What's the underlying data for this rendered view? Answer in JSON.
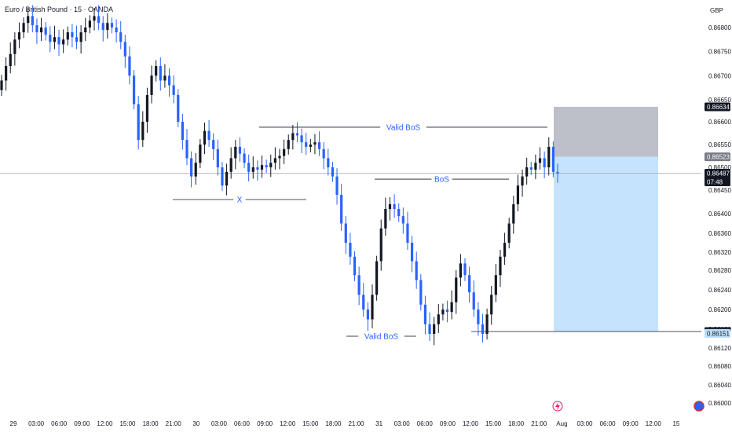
{
  "header": {
    "symbol_title": "Euro / British Pound · 15 · OANDA",
    "currency": "GBP"
  },
  "colors": {
    "up_candle": "#131722",
    "down_candle": "#2962ff",
    "annotation_text": "#2962ff",
    "annotation_line": "#131722",
    "stop_zone": "#b2b5be",
    "target_zone": "#bbdefb",
    "price_line": "#9598a1"
  },
  "chart_data": {
    "type": "candlestick",
    "title": "Euro / British Pound · 15 · OANDA",
    "ylim": [
      0.8597,
      0.869
    ],
    "y_ticks": [
      "0.86800",
      "0.86750",
      "0.86700",
      "0.86650",
      "0.86600",
      "0.86550",
      "0.86500",
      "0.86450",
      "0.86400",
      "0.86360",
      "0.86320",
      "0.86280",
      "0.86240",
      "0.86200",
      "0.86160",
      "0.86120",
      "0.86080",
      "0.86040",
      "0.86000"
    ],
    "x_ticks": [
      "29",
      "03:00",
      "06:00",
      "09:00",
      "12:00",
      "15:00",
      "18:00",
      "21:00",
      "30",
      "03:00",
      "06:00",
      "09:00",
      "12:00",
      "15:00",
      "18:00",
      "21:00",
      "31",
      "03:00",
      "06:00",
      "09:00",
      "12:00",
      "15:00",
      "18:00",
      "21:00",
      "Aug",
      "03:00",
      "06:00",
      "09:00",
      "12:00",
      "15"
    ],
    "price_labels": [
      {
        "value": 0.86634,
        "text": "0.86634",
        "style": "dark"
      },
      {
        "value": 0.86523,
        "text": "0.86523",
        "style": "grey"
      },
      {
        "value": 0.86487,
        "text": "0.86487",
        "style": "dark",
        "countdown": "07:48"
      },
      {
        "value": 0.86155,
        "text": "0.86155",
        "style": "dark"
      },
      {
        "value": 0.86151,
        "text": "0.86151",
        "style": "blue"
      }
    ],
    "annotations": [
      {
        "label": "Valid BoS",
        "level": 0.86588,
        "x0": 330,
        "x1": 697
      },
      {
        "label": "X",
        "level": 0.8643,
        "x0": 220,
        "x1": 390
      },
      {
        "label": "BoS",
        "level": 0.86474,
        "x0": 477,
        "x1": 648
      },
      {
        "label": "Valid BoS",
        "level": 0.86145,
        "x0": 441,
        "x1": 530
      }
    ],
    "support_line": {
      "level": 0.86155
    },
    "position": {
      "entry": 0.86487,
      "stop": 0.86634,
      "target": 0.86155
    },
    "current_price": 0.86487,
    "closes": [
      0.8669,
      0.8672,
      0.86745,
      0.86775,
      0.8679,
      0.8681,
      0.86825,
      0.86805,
      0.8679,
      0.868,
      0.86785,
      0.8677,
      0.8678,
      0.86765,
      0.86775,
      0.8679,
      0.8678,
      0.8677,
      0.8679,
      0.868,
      0.86815,
      0.86825,
      0.8681,
      0.86795,
      0.8681,
      0.868,
      0.8679,
      0.8677,
      0.8674,
      0.867,
      0.8664,
      0.8656,
      0.866,
      0.8666,
      0.867,
      0.8672,
      0.8669,
      0.867,
      0.8668,
      0.8666,
      0.866,
      0.8656,
      0.8652,
      0.8648,
      0.8651,
      0.8655,
      0.8658,
      0.8656,
      0.8654,
      0.865,
      0.8646,
      0.8649,
      0.8652,
      0.86545,
      0.8653,
      0.8651,
      0.8649,
      0.865,
      0.86495,
      0.86505,
      0.865,
      0.8651,
      0.8652,
      0.86525,
      0.8654,
      0.8656,
      0.86575,
      0.8657,
      0.86555,
      0.86545,
      0.8655,
      0.86555,
      0.8654,
      0.8652,
      0.865,
      0.8648,
      0.8644,
      0.8638,
      0.8634,
      0.8631,
      0.8627,
      0.8623,
      0.862,
      0.8618,
      0.8623,
      0.863,
      0.8637,
      0.8641,
      0.8642,
      0.8641,
      0.86395,
      0.8638,
      0.8634,
      0.863,
      0.8626,
      0.8621,
      0.8617,
      0.8615,
      0.8617,
      0.8619,
      0.862,
      0.86195,
      0.86215,
      0.86265,
      0.86295,
      0.8627,
      0.86235,
      0.862,
      0.8617,
      0.8615,
      0.8619,
      0.8623,
      0.8627,
      0.8631,
      0.8634,
      0.8638,
      0.8642,
      0.8646,
      0.8648,
      0.865,
      0.86495,
      0.8651,
      0.8652,
      0.865,
      0.86545,
      0.8649,
      0.86487
    ]
  }
}
